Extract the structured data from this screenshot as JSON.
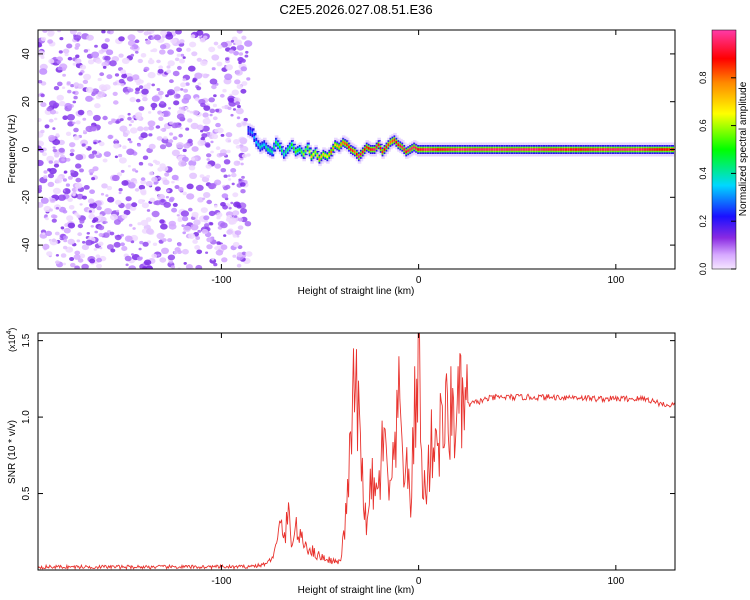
{
  "title": "C2E5.2026.027.08.51.E36",
  "chart_data": [
    {
      "type": "heatmap",
      "xlabel": "Height of straight line (km)",
      "ylabel": "Frequency (Hz)",
      "xlim": [
        -193,
        130
      ],
      "ylim": [
        -50,
        50
      ],
      "xticks": [
        -100,
        0,
        100
      ],
      "yticks": [
        -40,
        -20,
        0,
        20,
        40
      ],
      "noise_region_x": [
        -193,
        -86
      ],
      "ridge": {
        "x": [
          -86,
          -84,
          -82,
          -80,
          -78,
          -76,
          -74,
          -72,
          -70,
          -68,
          -66,
          -64,
          -62,
          -60,
          -58,
          -56,
          -54,
          -52,
          -50,
          -48,
          -46,
          -44,
          -42,
          -40,
          -38,
          -36,
          -34,
          -32,
          -30,
          -28,
          -26,
          -24,
          -22,
          -20,
          -18,
          -16,
          -14,
          -12,
          -10,
          -8,
          -6,
          -4,
          -2,
          0,
          5,
          10,
          20,
          40,
          60,
          80,
          100,
          110,
          120,
          130
        ],
        "freq": [
          8,
          7,
          3,
          1,
          2,
          0,
          -1,
          3,
          1,
          -2,
          0,
          2,
          -1,
          0,
          -2,
          1,
          -3,
          -1,
          -4,
          -2,
          -3,
          -1,
          2,
          1,
          3,
          2,
          0,
          -1,
          -3,
          -1,
          1,
          0,
          0,
          2,
          -1,
          1,
          3,
          4,
          2,
          1,
          -1,
          0,
          1,
          0,
          0,
          0,
          0,
          0,
          0,
          0,
          0,
          0,
          0,
          0
        ],
        "amplitude": [
          0.25,
          0.3,
          0.35,
          0.4,
          0.35,
          0.45,
          0.4,
          0.45,
          0.5,
          0.4,
          0.45,
          0.5,
          0.55,
          0.5,
          0.6,
          0.55,
          0.7,
          0.6,
          0.75,
          0.7,
          0.65,
          0.8,
          0.7,
          0.75,
          0.8,
          0.85,
          0.9,
          0.8,
          0.95,
          0.9,
          0.85,
          0.9,
          0.95,
          0.9,
          0.85,
          0.9,
          0.8,
          0.85,
          0.9,
          0.95,
          0.9,
          0.95,
          0.95,
          0.9,
          0.95,
          0.9,
          0.95,
          0.95,
          0.95,
          0.9,
          0.95,
          0.95,
          0.9,
          0.85
        ]
      },
      "colorbar": {
        "label": "Normalized spectral amplitude",
        "range": [
          0,
          1
        ],
        "ticks": [
          "0.0",
          "0.2",
          "0.4",
          "0.6",
          "0.8"
        ]
      }
    },
    {
      "type": "line",
      "xlabel": "Height of straight line (km)",
      "ylabel": "SNR (10 * v/v)",
      "y_multiplier": "(x10",
      "y_multiplier_exp": "4",
      "y_multiplier_close": ")",
      "xlim": [
        -193,
        130
      ],
      "ylim": [
        0,
        1.55
      ],
      "xticks": [
        -100,
        0,
        100
      ],
      "yticks": [
        "0.5",
        "1.0",
        "1.5"
      ],
      "series": [
        {
          "name": "SNR",
          "color": "#e8332e",
          "x": [
            -193,
            -160,
            -130,
            -100,
            -90,
            -80,
            -76,
            -72,
            -70,
            -68,
            -66,
            -64,
            -62,
            -60,
            -56,
            -52,
            -48,
            -44,
            -40,
            -38,
            -36,
            -34,
            -32,
            -30,
            -28,
            -26,
            -24,
            -22,
            -20,
            -18,
            -16,
            -14,
            -12,
            -10,
            -8,
            -6,
            -4,
            -2,
            0,
            2,
            4,
            6,
            8,
            10,
            12,
            15,
            20,
            25,
            30,
            35,
            40,
            50,
            60,
            70,
            80,
            90,
            100,
            110,
            115,
            120,
            125,
            130
          ],
          "y": [
            0.02,
            0.02,
            0.02,
            0.02,
            0.02,
            0.03,
            0.05,
            0.15,
            0.3,
            0.22,
            0.35,
            0.18,
            0.28,
            0.2,
            0.15,
            0.1,
            0.08,
            0.06,
            0.05,
            0.2,
            0.5,
            0.9,
            1.3,
            0.8,
            0.55,
            0.25,
            0.6,
            0.45,
            0.55,
            0.85,
            0.6,
            0.5,
            0.75,
            1.05,
            0.8,
            0.6,
            0.45,
            1.0,
            1.55,
            0.45,
            0.6,
            0.75,
            0.9,
            0.85,
            0.95,
            1.0,
            1.05,
            1.08,
            1.1,
            1.12,
            1.13,
            1.13,
            1.13,
            1.13,
            1.13,
            1.12,
            1.12,
            1.12,
            1.12,
            1.1,
            1.08,
            1.08
          ]
        }
      ]
    }
  ]
}
